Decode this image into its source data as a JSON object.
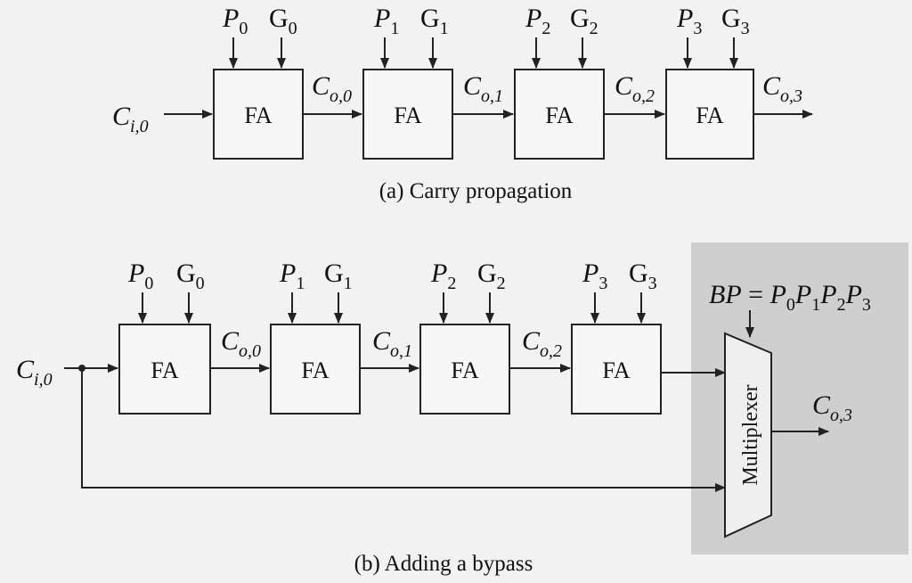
{
  "block_label": "FA",
  "part_a": {
    "caption": "(a) Carry propagation",
    "carry_in": {
      "base": "C",
      "sub": "i,0"
    },
    "stages": [
      {
        "p": {
          "base": "P",
          "sub": "0"
        },
        "g": {
          "base": "G",
          "sub": "0"
        },
        "carry_out": {
          "base": "C",
          "sub": "o,0"
        }
      },
      {
        "p": {
          "base": "P",
          "sub": "1"
        },
        "g": {
          "base": "G",
          "sub": "1"
        },
        "carry_out": {
          "base": "C",
          "sub": "o,1"
        }
      },
      {
        "p": {
          "base": "P",
          "sub": "2"
        },
        "g": {
          "base": "G",
          "sub": "2"
        },
        "carry_out": {
          "base": "C",
          "sub": "o,2"
        }
      },
      {
        "p": {
          "base": "P",
          "sub": "3"
        },
        "g": {
          "base": "G",
          "sub": "3"
        },
        "carry_out": {
          "base": "C",
          "sub": "o,3"
        }
      }
    ]
  },
  "part_b": {
    "caption": "(b) Adding a bypass",
    "carry_in": {
      "base": "C",
      "sub": "i,0"
    },
    "stages": [
      {
        "p": {
          "base": "P",
          "sub": "0"
        },
        "g": {
          "base": "G",
          "sub": "0"
        },
        "carry_out": {
          "base": "C",
          "sub": "o,0"
        }
      },
      {
        "p": {
          "base": "P",
          "sub": "1"
        },
        "g": {
          "base": "G",
          "sub": "1"
        },
        "carry_out": {
          "base": "C",
          "sub": "o,1"
        }
      },
      {
        "p": {
          "base": "P",
          "sub": "2"
        },
        "g": {
          "base": "G",
          "sub": "2"
        },
        "carry_out": {
          "base": "C",
          "sub": "o,2"
        }
      },
      {
        "p": {
          "base": "P",
          "sub": "3"
        },
        "g": {
          "base": "G",
          "sub": "3"
        },
        "carry_out": null
      }
    ],
    "bypass_select": {
      "lhs": "BP",
      "equals": " = ",
      "terms": [
        {
          "base": "P",
          "sub": "0"
        },
        {
          "base": "P",
          "sub": "1"
        },
        {
          "base": "P",
          "sub": "2"
        },
        {
          "base": "P",
          "sub": "3"
        }
      ]
    },
    "mux_label": "Multiplexer",
    "output": {
      "base": "C",
      "sub": "o,3"
    }
  }
}
